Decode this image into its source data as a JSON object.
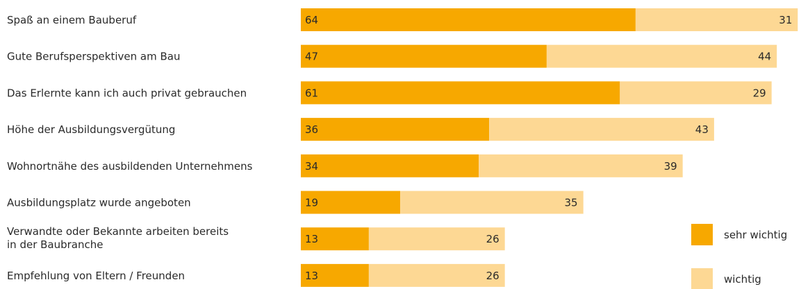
{
  "chart_data": {
    "type": "bar",
    "orientation": "horizontal",
    "stacked": true,
    "categories": [
      [
        "Spaß an einem Bauberuf"
      ],
      [
        "Gute Berufsperspektiven am Bau"
      ],
      [
        "Das Erlernte kann ich auch privat gebrauchen"
      ],
      [
        "Höhe der Ausbildungsvergütung"
      ],
      [
        "Wohnortnähe des ausbildenden Unternehmens"
      ],
      [
        "Ausbildungsplatz wurde angeboten"
      ],
      [
        "Verwandte oder Bekannte arbeiten bereits",
        "in der Baubranche"
      ],
      [
        "Empfehlung von Eltern / Freunden"
      ]
    ],
    "series": [
      {
        "name": "sehr wichtig",
        "color": "#f7a800",
        "values": [
          64,
          47,
          61,
          36,
          34,
          19,
          13,
          13
        ]
      },
      {
        "name": "wichtig",
        "color": "#fdd894",
        "values": [
          31,
          44,
          29,
          43,
          39,
          35,
          26,
          26
        ]
      }
    ],
    "xlim": [
      0,
      100
    ],
    "grid": false,
    "legend_position": "bottom-right"
  }
}
